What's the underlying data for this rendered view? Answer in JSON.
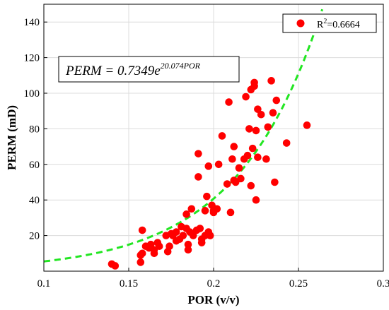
{
  "chart_data": {
    "type": "scatter",
    "xlabel": "POR (v/v)",
    "ylabel": "PERM (mD)",
    "xlim": [
      0.1,
      0.3
    ],
    "ylim": [
      0,
      150
    ],
    "xticks": [
      "0.1",
      "0.15",
      "0.2",
      "0.25",
      "0.3"
    ],
    "yticks": [
      "20",
      "40",
      "60",
      "80",
      "100",
      "120",
      "140"
    ],
    "grid": true,
    "legend_placement": "top-right",
    "legend_label_base": "R",
    "legend_label_sup": "2",
    "legend_label_rest": "=0.6664",
    "equation_lhs": "PERM = 0.7349e",
    "equation_exp": "20.074POR",
    "fit": {
      "a": 0.7349,
      "b": 20.074,
      "style": "dashed",
      "color": "#22e622"
    },
    "marker_color": "#ff0000",
    "points": [
      [
        0.14,
        4
      ],
      [
        0.142,
        3
      ],
      [
        0.157,
        5
      ],
      [
        0.157,
        9
      ],
      [
        0.158,
        23
      ],
      [
        0.158,
        10
      ],
      [
        0.16,
        14
      ],
      [
        0.162,
        13
      ],
      [
        0.163,
        15
      ],
      [
        0.165,
        10
      ],
      [
        0.165,
        12
      ],
      [
        0.167,
        16
      ],
      [
        0.168,
        14
      ],
      [
        0.172,
        20
      ],
      [
        0.173,
        11
      ],
      [
        0.174,
        14
      ],
      [
        0.175,
        21
      ],
      [
        0.176,
        20
      ],
      [
        0.178,
        22
      ],
      [
        0.178,
        17
      ],
      [
        0.18,
        18
      ],
      [
        0.181,
        25
      ],
      [
        0.182,
        20
      ],
      [
        0.184,
        24
      ],
      [
        0.184,
        32
      ],
      [
        0.185,
        15
      ],
      [
        0.185,
        12
      ],
      [
        0.186,
        22
      ],
      [
        0.187,
        35
      ],
      [
        0.188,
        20
      ],
      [
        0.19,
        23
      ],
      [
        0.191,
        66
      ],
      [
        0.191,
        53
      ],
      [
        0.192,
        24
      ],
      [
        0.193,
        16
      ],
      [
        0.193,
        18
      ],
      [
        0.195,
        20
      ],
      [
        0.195,
        34
      ],
      [
        0.196,
        42
      ],
      [
        0.197,
        59
      ],
      [
        0.197,
        22
      ],
      [
        0.198,
        20
      ],
      [
        0.199,
        37
      ],
      [
        0.2,
        34
      ],
      [
        0.2,
        33
      ],
      [
        0.202,
        35
      ],
      [
        0.203,
        60
      ],
      [
        0.205,
        76
      ],
      [
        0.208,
        49
      ],
      [
        0.209,
        95
      ],
      [
        0.21,
        33
      ],
      [
        0.211,
        63
      ],
      [
        0.212,
        51
      ],
      [
        0.212,
        70
      ],
      [
        0.213,
        50
      ],
      [
        0.215,
        58
      ],
      [
        0.216,
        52
      ],
      [
        0.218,
        63
      ],
      [
        0.219,
        98
      ],
      [
        0.22,
        65
      ],
      [
        0.221,
        80
      ],
      [
        0.222,
        48
      ],
      [
        0.222,
        102
      ],
      [
        0.223,
        69
      ],
      [
        0.224,
        106
      ],
      [
        0.224,
        104
      ],
      [
        0.225,
        79
      ],
      [
        0.225,
        40
      ],
      [
        0.226,
        91
      ],
      [
        0.226,
        64
      ],
      [
        0.228,
        88
      ],
      [
        0.231,
        63
      ],
      [
        0.232,
        81
      ],
      [
        0.234,
        107
      ],
      [
        0.235,
        89
      ],
      [
        0.236,
        50
      ],
      [
        0.237,
        96
      ],
      [
        0.243,
        72
      ],
      [
        0.255,
        82
      ]
    ]
  }
}
